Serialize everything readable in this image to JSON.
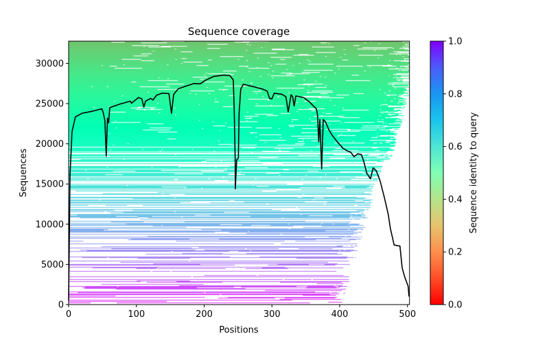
{
  "chart_data": {
    "type": "line",
    "title": "Sequence coverage",
    "xlabel": "Positions",
    "ylabel": "Sequences",
    "xlim": [
      0,
      503
    ],
    "ylim": [
      0,
      32767
    ],
    "xticks": [
      0,
      100,
      200,
      300,
      400,
      500
    ],
    "yticks": [
      0,
      5000,
      10000,
      15000,
      20000,
      25000,
      30000
    ],
    "grid": false,
    "background": {
      "type": "heatmap",
      "description_colormap": "rainbow",
      "value_label": "Sequence identity to query"
    },
    "colorbar": {
      "label": "Sequence identity to query",
      "range": [
        0.0,
        1.0
      ],
      "ticks": [
        0.0,
        0.2,
        0.4,
        0.6,
        0.8,
        1.0
      ],
      "tick_labels": [
        "0.0",
        "0.2",
        "0.4",
        "0.6",
        "0.8",
        "1.0"
      ]
    },
    "series": [
      {
        "name": "coverage",
        "color": "#000000",
        "x": [
          0,
          1,
          2,
          5,
          10,
          20,
          35,
          49,
          51,
          53.5,
          55.5,
          57.3,
          59,
          60.7,
          76,
          91,
          92.8,
          103,
          108,
          111,
          113.5,
          121,
          124.5,
          129.8,
          138.3,
          148,
          151.8,
          155,
          162,
          172,
          185,
          194,
          202,
          214,
          229,
          238,
          243,
          244.5,
          245.8,
          246,
          248,
          250.5,
          251.5,
          254,
          257.7,
          273,
          286.5,
          293,
          296.5,
          300,
          303.4,
          315,
          320.7,
          324,
          328.3,
          330.6,
          332.8,
          335.3,
          347,
          355.5,
          360.5,
          365.6,
          367.4,
          369.1,
          370.7,
          373.4,
          375.7,
          379,
          384,
          389,
          396.4,
          404.8,
          411.6,
          416.2,
          421.2,
          426.5,
          432.2,
          435.6,
          440,
          445.4,
          449.4,
          454,
          459.5,
          465.6,
          471.6,
          474.8,
          480.4,
          488.9,
          492.2,
          496,
          501,
          502.3
        ],
        "y": [
          500,
          8200,
          16000,
          21500,
          23350,
          23800,
          24050,
          24350,
          23900,
          22900,
          18450,
          23200,
          22600,
          24500,
          24950,
          25300,
          25050,
          25750,
          25600,
          24570,
          25300,
          25650,
          25450,
          26050,
          26300,
          26250,
          23800,
          26150,
          26850,
          27150,
          27500,
          27450,
          27900,
          28380,
          28550,
          28480,
          27950,
          23700,
          18000,
          14400,
          18000,
          18250,
          23700,
          26800,
          27400,
          27100,
          26800,
          26550,
          25650,
          25600,
          26300,
          26150,
          25850,
          23970,
          26100,
          25850,
          24700,
          25950,
          25740,
          25200,
          24760,
          24350,
          23500,
          20250,
          23020,
          16880,
          23020,
          22750,
          21750,
          21050,
          20250,
          19450,
          19100,
          18960,
          18400,
          18750,
          18650,
          17780,
          16350,
          15640,
          17000,
          16640,
          15430,
          13430,
          11250,
          9470,
          7410,
          7280,
          4560,
          3420,
          2280,
          1000
        ]
      }
    ]
  }
}
